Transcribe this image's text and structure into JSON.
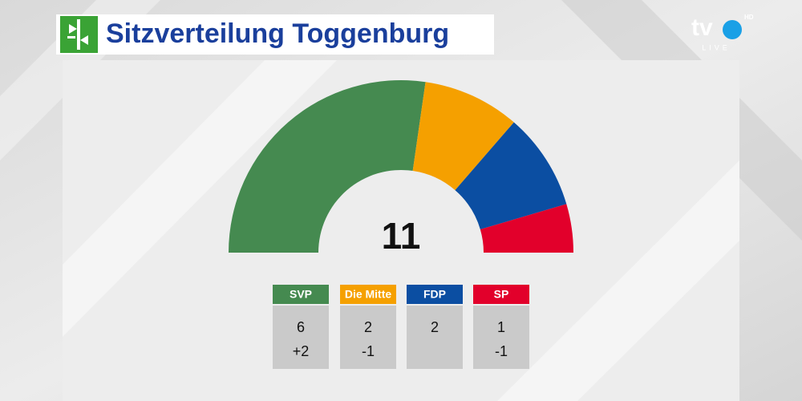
{
  "chart_data": {
    "type": "semicircle",
    "title": "Sitzverteilung Toggenburg",
    "total": 11,
    "categories": [
      "SVP",
      "Die Mitte",
      "FDP",
      "SP"
    ],
    "values": [
      6,
      2,
      2,
      1
    ],
    "changes": [
      2,
      -1,
      null,
      -1
    ],
    "change_labels": [
      "+2",
      "-1",
      null,
      "-1"
    ],
    "colors": [
      "#458a50",
      "#f5a000",
      "#0b4ea2",
      "#e2002b"
    ]
  },
  "logo": {
    "brand": "tv",
    "hd": "HD",
    "live": "LIVE"
  }
}
